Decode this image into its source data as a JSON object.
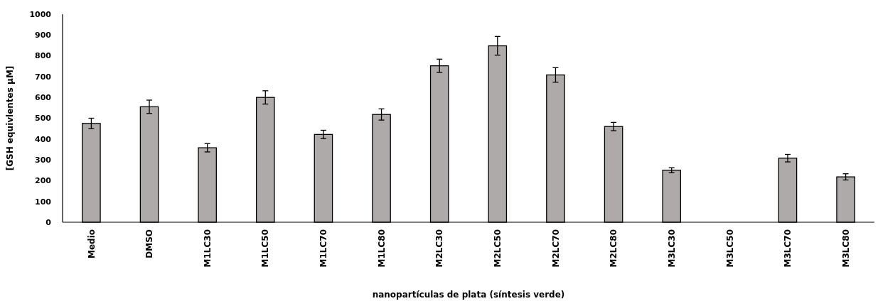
{
  "chart_data": {
    "type": "bar",
    "xlabel": "nanopartículas de plata (síntesis verde)",
    "ylabel": "[GSH equivlentes µM]",
    "categories": [
      "Medio",
      "DMSO",
      "M1LC30",
      "M1LC50",
      "M1LC70",
      "M1LC80",
      "M2LC30",
      "M2LC50",
      "M2LC70",
      "M2LC80",
      "M3LC30",
      "M3LC50",
      "M3LC70",
      "M3LC80"
    ],
    "values": [
      475,
      555,
      358,
      600,
      422,
      518,
      752,
      848,
      708,
      460,
      250,
      null,
      308,
      218
    ],
    "errors": [
      25,
      32,
      20,
      32,
      20,
      27,
      32,
      45,
      35,
      20,
      12,
      null,
      18,
      15
    ],
    "color": "#aeaaaa",
    "ylim": [
      0,
      1000
    ],
    "yticks": [
      0,
      100,
      200,
      300,
      400,
      500,
      600,
      700,
      800,
      900,
      1000
    ]
  }
}
